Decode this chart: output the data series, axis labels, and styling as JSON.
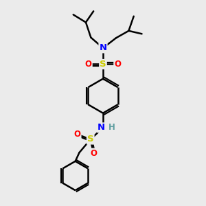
{
  "bg_color": "#ebebeb",
  "bond_color": "#000000",
  "bond_width": 1.8,
  "atom_colors": {
    "N": "#0000ff",
    "S": "#cccc00",
    "O": "#ff0000",
    "H": "#5f9ea0",
    "C": "#000000"
  },
  "font_size": 8.5,
  "ring_r": 0.85,
  "ph_r": 0.72
}
